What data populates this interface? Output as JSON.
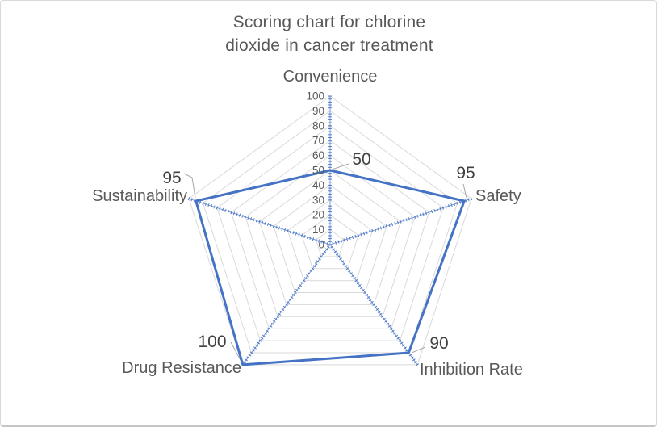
{
  "title_lines": [
    "Scoring chart for chlorine",
    "dioxide in cancer treatment"
  ],
  "chart_data": {
    "type": "radar",
    "title": "Scoring chart for chlorine dioxide in cancer treatment",
    "categories": [
      "Convenience",
      "Safety",
      "Inhibition Rate",
      "Drug Resistance",
      "Sustainability"
    ],
    "series": [
      {
        "name": "Score",
        "values": [
          50,
          95,
          90,
          100,
          95
        ]
      }
    ],
    "axis": {
      "min": 0,
      "max": 100,
      "step": 10,
      "tick_labels": [
        "0",
        "10",
        "20",
        "30",
        "40",
        "50",
        "60",
        "70",
        "80",
        "90",
        "100"
      ]
    },
    "grid": true,
    "legend": "none",
    "colors": {
      "series_line": "#4472C4",
      "axis_spoke": "#4472C4",
      "gridline": "#D9D9D9",
      "data_label": "#404040",
      "category_label": "#595959",
      "tick_label": "#595959",
      "leader_line": "#A8A8A8"
    }
  }
}
